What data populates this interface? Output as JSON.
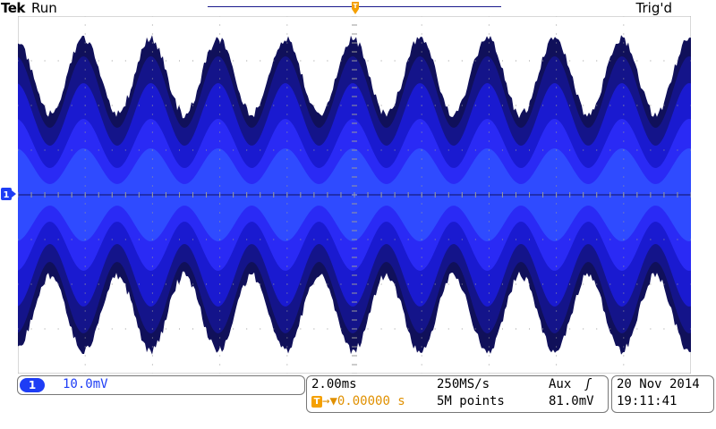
{
  "header": {
    "brand": "Tek",
    "acq_state": "Run",
    "trigger_status": "Trig'd"
  },
  "channel": {
    "number": "1",
    "scale": "10.0mV",
    "color": "#1e3df5"
  },
  "timebase": {
    "time_per_div": "2.00ms",
    "sample_rate": "250MS/s",
    "record_length": "5M points",
    "trigger_offset_label": "▼0.00000 s",
    "trigger_marker": "T"
  },
  "trigger": {
    "source": "Aux",
    "slope_icon": "rising-edge-icon",
    "slope_glyph": "ʃ",
    "level": "81.0mV",
    "color": "#f5a000"
  },
  "datetime": {
    "date": "20 Nov 2014",
    "time": "19:11:41"
  },
  "waveform": {
    "type": "am-modulated-noise-envelope",
    "cycles": 10,
    "divisions_x": 10,
    "divisions_y": 8
  }
}
